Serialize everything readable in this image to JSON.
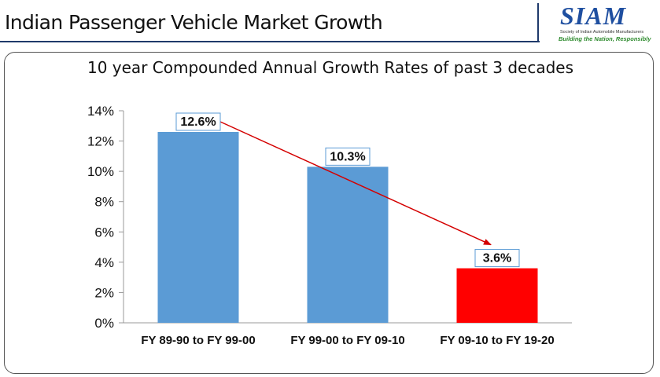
{
  "header": {
    "title": "Indian Passenger Vehicle Market Growth",
    "logo": {
      "name": "SIAM",
      "subtitle": "Society of Indian Automobile Manufacturers",
      "tagline": "Building the Nation, Responsibly"
    }
  },
  "colors": {
    "bar_default": "#5b9bd5",
    "bar_highlight": "#ff0000",
    "arrow": "#d40000",
    "label_border": "#5b9bd5"
  },
  "chart_data": {
    "type": "bar",
    "title": "10 year Compounded Annual Growth Rates of past 3 decades",
    "xlabel": "",
    "ylabel": "",
    "categories": [
      "FY 89-90 to FY 99-00",
      "FY 99-00 to FY 09-10",
      "FY 09-10 to FY 19-20"
    ],
    "values": [
      12.6,
      10.3,
      3.6
    ],
    "data_labels": [
      "12.6%",
      "10.3%",
      "3.6%"
    ],
    "bar_colors": [
      "#5b9bd5",
      "#5b9bd5",
      "#ff0000"
    ],
    "ylim": [
      0,
      14
    ],
    "yticks": [
      0,
      2,
      4,
      6,
      8,
      10,
      12,
      14
    ],
    "ytick_labels": [
      "0%",
      "2%",
      "4%",
      "6%",
      "8%",
      "10%",
      "12%",
      "14%"
    ],
    "grid": false,
    "legend": "none",
    "annotation": "arrow from first bar to last bar indicating declining growth"
  }
}
